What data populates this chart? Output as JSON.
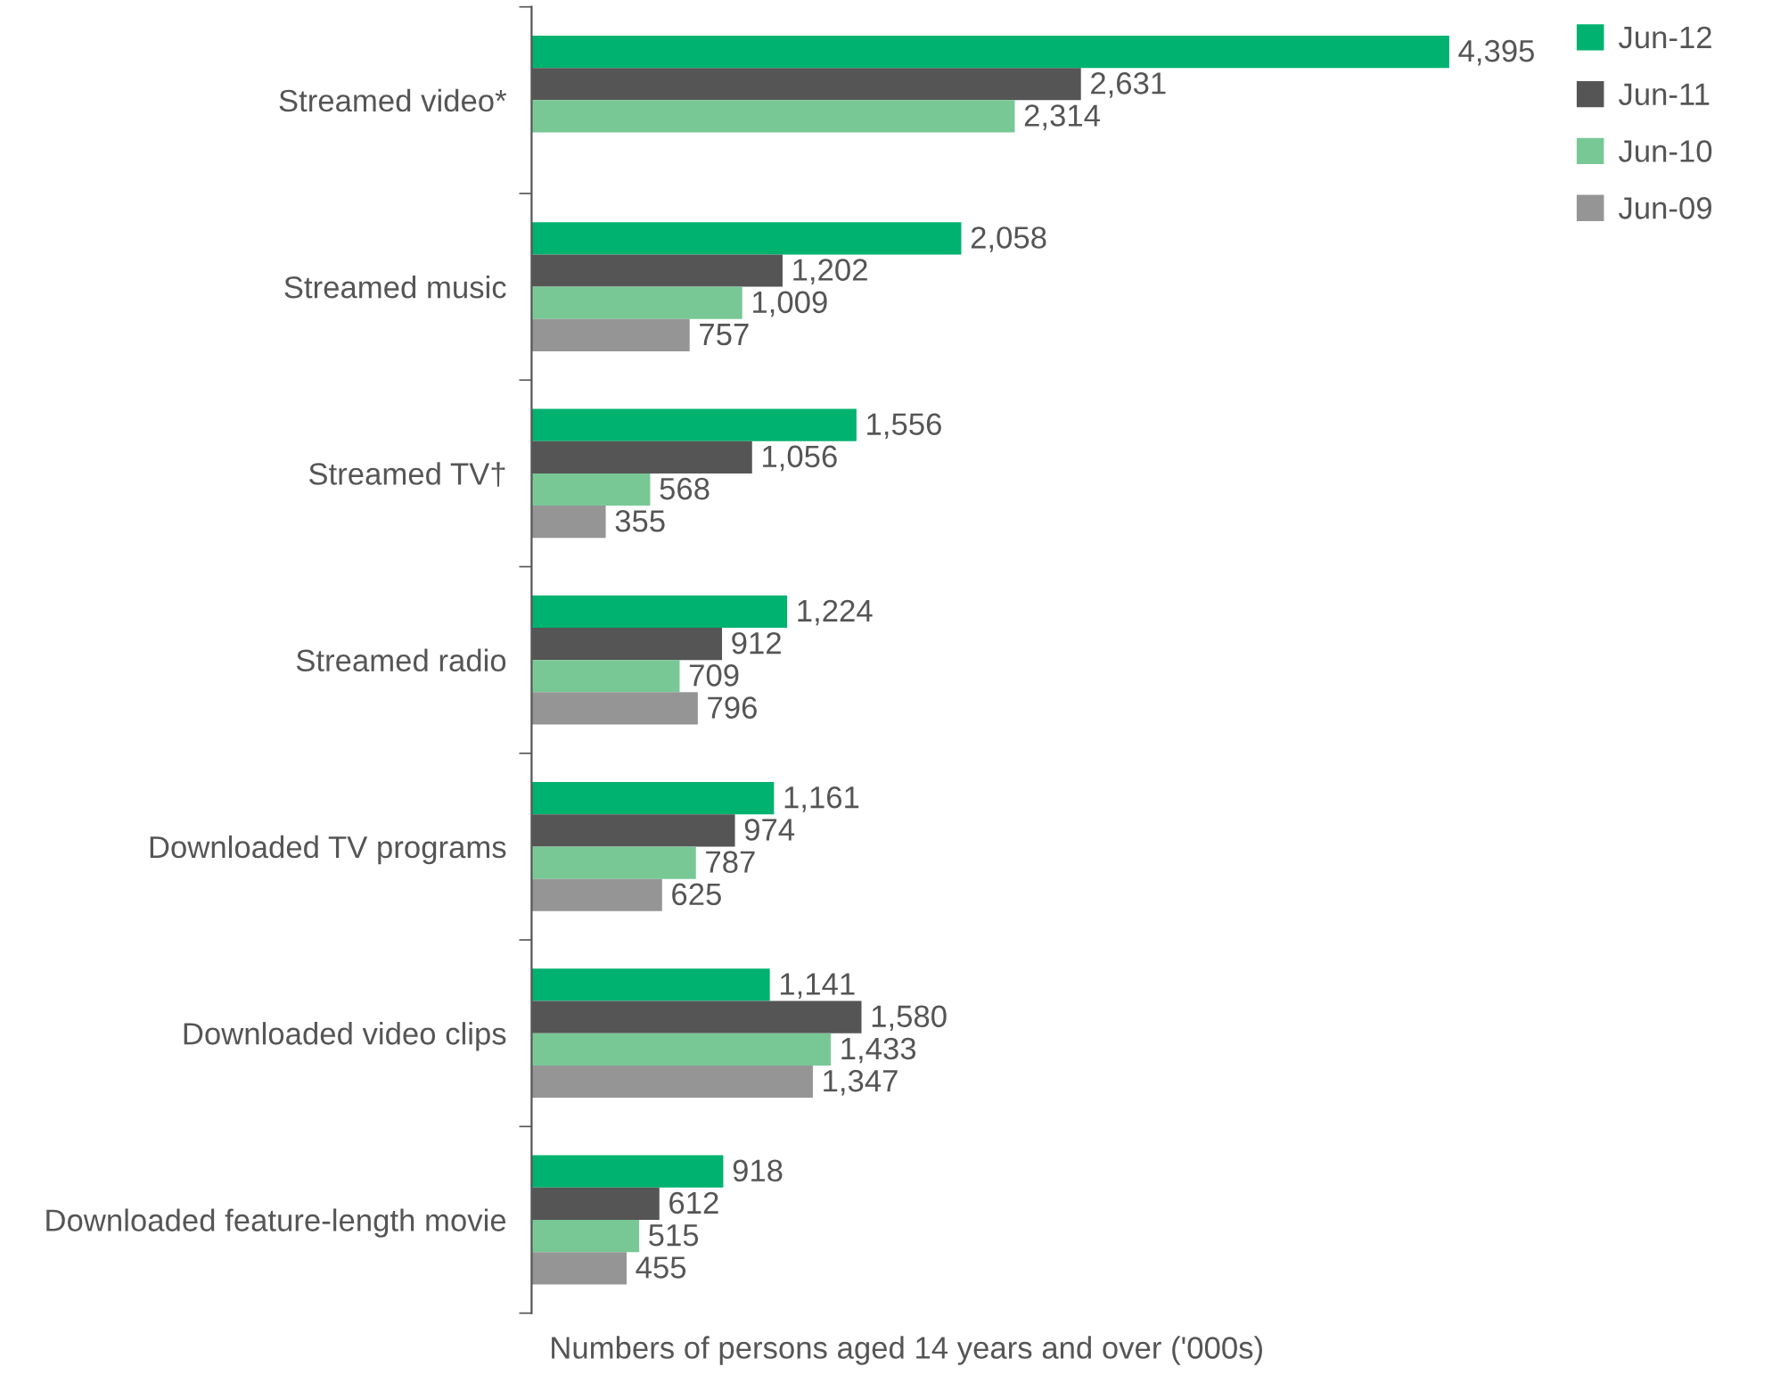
{
  "chart_data": {
    "type": "bar",
    "orientation": "horizontal",
    "xlabel": "Numbers of persons aged 14 years and over ('000s)",
    "categories": [
      "Streamed video*",
      "Streamed music",
      "Streamed TV†",
      "Streamed radio",
      "Downloaded TV programs",
      "Downloaded video clips",
      "Downloaded feature-length movie"
    ],
    "series": [
      {
        "name": "Jun-12",
        "color": "#00b26f",
        "values": [
          4395,
          2058,
          1556,
          1224,
          1161,
          1141,
          918
        ],
        "value_labels": [
          "4,395",
          "2,058",
          "1,556",
          "1,224",
          "1,161",
          "1,141",
          "918"
        ]
      },
      {
        "name": "Jun-11",
        "color": "#555555",
        "values": [
          2631,
          1202,
          1056,
          912,
          974,
          1580,
          612
        ],
        "value_labels": [
          "2,631",
          "1,202",
          "1,056",
          "912",
          "974",
          "1,580",
          "612"
        ]
      },
      {
        "name": "Jun-10",
        "color": "#78c896",
        "values": [
          2314,
          1009,
          568,
          709,
          787,
          1433,
          515
        ],
        "value_labels": [
          "2,314",
          "1,009",
          "568",
          "709",
          "787",
          "1,433",
          "515"
        ]
      },
      {
        "name": "Jun-09",
        "color": "#959595",
        "values": [
          null,
          757,
          355,
          796,
          625,
          1347,
          455
        ],
        "value_labels": [
          null,
          "757",
          "355",
          "796",
          "625",
          "1,347",
          "455"
        ]
      }
    ],
    "legend": "top right",
    "grid": false
  }
}
